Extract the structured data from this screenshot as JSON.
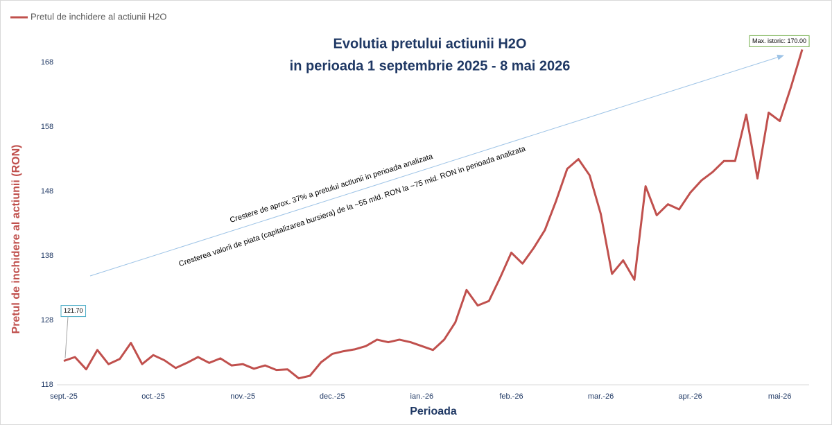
{
  "chart_data": {
    "type": "line",
    "title": [
      "Evolutia pretului actiunii H2O",
      "in perioada 1 septembrie 2025 - 8 mai 2026"
    ],
    "x_label": "Perioada",
    "y_label": "Pretul de inchidere al actiunii (RON)",
    "annotations": [
      "Crestere de aprox. 37% a pretului actiunii in perioada analizata",
      "Cresterea valorii de piata (capitalizarea bursiera) de la ~55 mld.  RON la ~75 mld. RON in perioada analizata"
    ],
    "categories": [
      "sept.-25",
      null,
      null,
      null,
      null,
      null,
      null,
      null,
      "oct.-25",
      null,
      null,
      null,
      null,
      null,
      null,
      null,
      "nov.-25",
      null,
      null,
      null,
      null,
      null,
      null,
      null,
      "dec.-25",
      null,
      null,
      null,
      null,
      null,
      null,
      null,
      "ian.-26",
      null,
      null,
      null,
      null,
      null,
      null,
      null,
      "feb.-26",
      null,
      null,
      null,
      null,
      null,
      null,
      null,
      "mar.-26",
      null,
      null,
      null,
      null,
      null,
      null,
      null,
      "apr.-26",
      null,
      null,
      null,
      null,
      null,
      null,
      null,
      "mai-26",
      null,
      null
    ],
    "series": [
      {
        "name": "Pretul de inchidere al actiunii H2O",
        "color": "#c0504d",
        "values": [
          121.7,
          122.3,
          120.4,
          123.4,
          121.2,
          122.0,
          124.5,
          121.2,
          122.6,
          121.8,
          120.6,
          121.4,
          122.3,
          121.4,
          122.1,
          121.0,
          121.2,
          120.5,
          121.0,
          120.3,
          120.4,
          119.0,
          119.4,
          121.5,
          122.8,
          123.2,
          123.5,
          124.0,
          125.0,
          124.6,
          125.0,
          124.6,
          124.0,
          123.4,
          125.0,
          127.7,
          132.7,
          130.3,
          131.0,
          134.6,
          138.5,
          136.8,
          139.2,
          142.0,
          146.5,
          151.5,
          153.0,
          150.5,
          144.5,
          135.2,
          137.3,
          134.3,
          148.8,
          144.3,
          146.0,
          145.2,
          147.8,
          149.7,
          151.0,
          152.7,
          152.7,
          159.9,
          150.0,
          160.2,
          158.9,
          164.2,
          170.0
        ],
        "value_labels": [
          "121.70",
          null,
          null,
          null,
          null,
          null,
          null,
          null,
          null,
          null,
          null,
          null,
          null,
          null,
          null,
          null,
          null,
          null,
          null,
          null,
          null,
          null,
          null,
          null,
          null,
          null,
          null,
          null,
          null,
          null,
          null,
          null,
          null,
          null,
          null,
          null,
          null,
          null,
          null,
          null,
          null,
          null,
          null,
          null,
          null,
          null,
          null,
          null,
          null,
          null,
          null,
          null,
          null,
          null,
          null,
          null,
          null,
          null,
          null,
          null,
          null,
          null,
          null,
          null,
          null,
          null,
          "Max. istoric: 170.00"
        ]
      }
    ],
    "ylim": [
      118,
      172
    ],
    "yticks": [
      118,
      128,
      138,
      148,
      158,
      168
    ],
    "grid": false,
    "legend": "top-left"
  }
}
